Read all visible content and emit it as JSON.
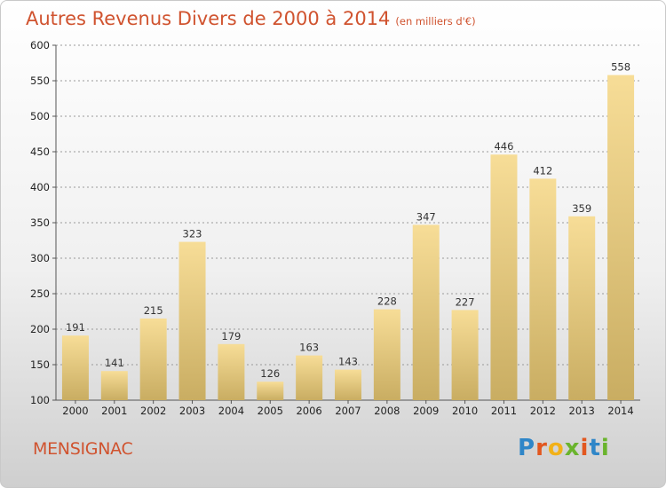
{
  "title": "Autres Revenus Divers de 2000 à 2014",
  "subtitle": "(en milliers d'€)",
  "place": "MENSIGNAC",
  "logo": {
    "text": "Proxiti",
    "letters": [
      {
        "ch": "P",
        "color": "#2f86c8"
      },
      {
        "ch": "r",
        "color": "#e2571f"
      },
      {
        "ch": "o",
        "color": "#f2b118"
      },
      {
        "ch": "x",
        "color": "#6ab42d"
      },
      {
        "ch": "i",
        "color": "#e2571f"
      },
      {
        "ch": "t",
        "color": "#2f86c8"
      },
      {
        "ch": "i",
        "color": "#6ab42d"
      }
    ]
  },
  "colors": {
    "title": "#d0532f",
    "bar_top": "#f7dd97",
    "bar_bottom": "#c9ad62",
    "axis": "#555555",
    "grid": "#999999"
  },
  "chart_data": {
    "type": "bar",
    "title": "Autres Revenus Divers de 2000 à 2014",
    "subtitle": "(en milliers d'€)",
    "categories": [
      "2000",
      "2001",
      "2002",
      "2003",
      "2004",
      "2005",
      "2006",
      "2007",
      "2008",
      "2009",
      "2010",
      "2011",
      "2012",
      "2013",
      "2014"
    ],
    "values": [
      191,
      141,
      215,
      323,
      179,
      126,
      163,
      143,
      228,
      347,
      227,
      446,
      412,
      359,
      558
    ],
    "ylim": [
      100,
      600
    ],
    "yticks": [
      100,
      150,
      200,
      250,
      300,
      350,
      400,
      450,
      500,
      550,
      600
    ],
    "grid": true,
    "data_labels": true
  }
}
